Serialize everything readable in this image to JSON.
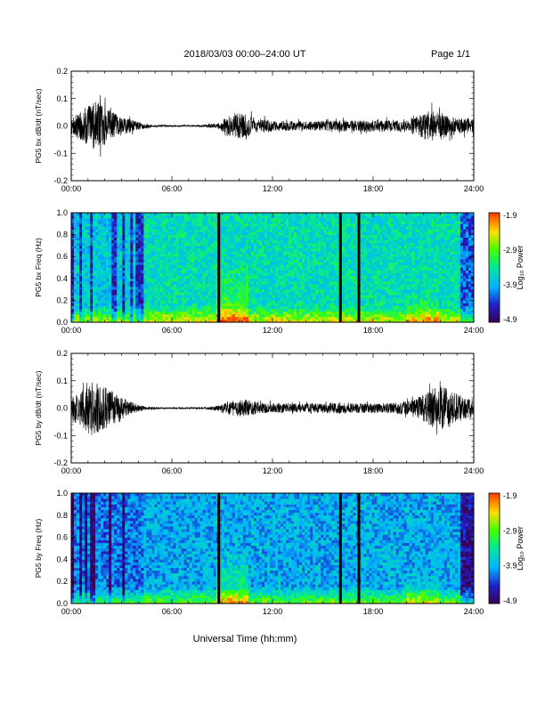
{
  "header": {
    "title": "2018/03/03  00:00–24:00 UT",
    "page": "Page 1/1"
  },
  "footer": {
    "xlabel": "Universal Time (hh:mm)"
  },
  "colors": {
    "trace": "#000000",
    "colormap": [
      "#3a0050",
      "#1f1fc8",
      "#00b4ff",
      "#00e6a0",
      "#40ff00",
      "#ffe000",
      "#ff4000"
    ]
  },
  "chart_data": [
    {
      "type": "line",
      "ylabel": "PG5 bx dB/dt (nT/sec)",
      "xlim": [
        0,
        24
      ],
      "ylim": [
        -0.2,
        0.2
      ],
      "yticks": [
        "0.2",
        "0.1",
        "0.0",
        "-0.1",
        "-0.2"
      ],
      "xticks": [
        "00:00",
        "06:00",
        "12:00",
        "18:00",
        "24:00"
      ],
      "envelope": {
        "x_hours": [
          0,
          0.5,
          1,
          1.5,
          2,
          2.5,
          3,
          3.5,
          4,
          4.5,
          5,
          6,
          7,
          8,
          8.8,
          9.2,
          9.6,
          10,
          10.5,
          11,
          11.5,
          12,
          13,
          14,
          15,
          16,
          17,
          18,
          19,
          20,
          20.5,
          21,
          21.5,
          22,
          22.5,
          23,
          24
        ],
        "amplitude": [
          0.03,
          0.05,
          0.08,
          0.09,
          0.07,
          0.05,
          0.035,
          0.025,
          0.015,
          0.008,
          0.004,
          0.003,
          0.003,
          0.004,
          0.012,
          0.03,
          0.04,
          0.05,
          0.04,
          0.03,
          0.025,
          0.02,
          0.018,
          0.016,
          0.018,
          0.02,
          0.02,
          0.022,
          0.02,
          0.022,
          0.03,
          0.05,
          0.055,
          0.05,
          0.04,
          0.03,
          0.025
        ]
      }
    },
    {
      "type": "heatmap",
      "ylabel": "PG5 bx Freq (Hz)",
      "xlim": [
        0,
        24
      ],
      "ylim": [
        0,
        1.0
      ],
      "yticks": [
        "1.0",
        "0.8",
        "0.6",
        "0.4",
        "0.2",
        "0.0"
      ],
      "xticks": [
        "00:00",
        "06:00",
        "12:00",
        "18:00",
        "24:00"
      ],
      "colorbar": {
        "label": "Log₁₀ Power",
        "ticks": [
          "-1.9",
          "-2.9",
          "-3.9",
          "-4.9"
        ],
        "range": [
          -4.9,
          -1.9
        ]
      },
      "data_gaps_hours": [
        8.8,
        16.05,
        17.15
      ],
      "baseline_log_power": -3.5
    },
    {
      "type": "line",
      "ylabel": "PG5 by dB/dt (nT/sec)",
      "xlim": [
        0,
        24
      ],
      "ylim": [
        -0.2,
        0.2
      ],
      "yticks": [
        "0.2",
        "0.1",
        "0.0",
        "-0.1",
        "-0.2"
      ],
      "xticks": [
        "00:00",
        "06:00",
        "12:00",
        "18:00",
        "24:00"
      ],
      "envelope": {
        "x_hours": [
          0,
          0.5,
          1,
          1.5,
          2,
          2.5,
          3,
          3.5,
          4,
          4.5,
          5,
          6,
          7,
          8,
          8.8,
          9.2,
          9.6,
          10,
          10.5,
          11,
          11.5,
          12,
          13,
          14,
          15,
          16,
          17,
          18,
          19,
          20,
          20.5,
          21,
          21.5,
          22,
          22.5,
          23,
          24
        ],
        "amplitude": [
          0.03,
          0.06,
          0.1,
          0.1,
          0.08,
          0.06,
          0.04,
          0.025,
          0.012,
          0.006,
          0.004,
          0.003,
          0.003,
          0.004,
          0.01,
          0.02,
          0.03,
          0.035,
          0.03,
          0.025,
          0.02,
          0.018,
          0.016,
          0.016,
          0.018,
          0.02,
          0.018,
          0.018,
          0.02,
          0.025,
          0.035,
          0.05,
          0.07,
          0.08,
          0.07,
          0.05,
          0.035
        ]
      }
    },
    {
      "type": "heatmap",
      "ylabel": "PG5 by Freq (Hz)",
      "xlim": [
        0,
        24
      ],
      "ylim": [
        0,
        1.0
      ],
      "yticks": [
        "1.0",
        "0.8",
        "0.6",
        "0.4",
        "0.2",
        "0.0"
      ],
      "xticks": [
        "00:00",
        "06:00",
        "12:00",
        "18:00",
        "24:00"
      ],
      "colorbar": {
        "label": "Log₁₀ Power",
        "ticks": [
          "-1.9",
          "-2.9",
          "-3.9",
          "-4.9"
        ],
        "range": [
          -4.9,
          -1.9
        ]
      },
      "data_gaps_hours": [
        8.8,
        16.05,
        17.15
      ],
      "baseline_log_power": -3.9
    }
  ]
}
